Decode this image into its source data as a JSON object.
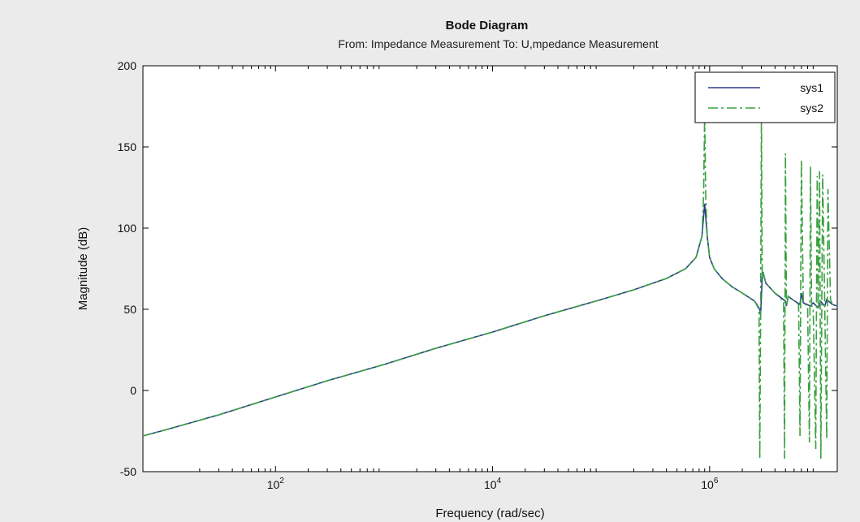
{
  "chart_data": {
    "type": "line",
    "title": "Bode Diagram",
    "subtitle": "From: Impedance Measurement  To: U,mpedance Measurement",
    "xlabel": "Frequency  (rad/sec)",
    "ylabel": "Magnitude (dB)",
    "xscale": "log",
    "xlim": [
      6,
      15000000
    ],
    "ylim": [
      -50,
      200
    ],
    "yticks": [
      -50,
      0,
      50,
      100,
      150,
      200
    ],
    "xticks": [
      100,
      10000,
      1000000
    ],
    "xtick_labels": [
      {
        "base": "10",
        "exp": "2"
      },
      {
        "base": "10",
        "exp": "4"
      },
      {
        "base": "10",
        "exp": "6"
      }
    ],
    "grid": false,
    "legend": "top-right",
    "colors": {
      "sys1": "#2b3a8c",
      "sys2": "#3aa040",
      "background": "#ebebeb",
      "axes": "#ffffff"
    },
    "series": [
      {
        "name": "sys1",
        "style": "solid",
        "x": [
          6,
          10,
          30,
          100,
          300,
          1000,
          3000,
          10000,
          30000,
          100000,
          200000,
          400000,
          600000,
          750000,
          850000,
          900000,
          950000,
          1000000,
          1100000,
          1300000,
          1600000,
          2000000,
          2600000,
          2900000,
          2950000,
          3050000,
          3100000,
          3300000,
          4000000,
          5000000,
          5100000,
          5300000,
          5800000,
          6800000,
          7000000,
          7300000,
          8500000,
          9000000,
          10000000,
          10500000,
          11500000,
          12000000,
          13500000,
          15000000
        ],
        "y": [
          -28,
          -24,
          -15,
          -4,
          6,
          16,
          26,
          36,
          46,
          56,
          62,
          69,
          75,
          82,
          95,
          115,
          95,
          82,
          75,
          69,
          64,
          60,
          55,
          50,
          46,
          70,
          73,
          66,
          60,
          55,
          52,
          58,
          56,
          53,
          60,
          54,
          52,
          54,
          51,
          55,
          52,
          56,
          53,
          52
        ]
      },
      {
        "name": "sys2",
        "style": "dash-dot",
        "x": [
          6,
          10,
          30,
          100,
          300,
          1000,
          3000,
          10000,
          30000,
          100000,
          200000,
          400000,
          600000,
          750000,
          850000,
          880000,
          900000,
          920000,
          950000,
          1000000,
          1100000,
          1300000,
          1600000,
          2000000,
          2600000,
          2850000,
          2900000,
          2950000,
          3000000,
          3050000,
          3100000,
          3300000,
          4000000,
          4800000,
          4900000,
          5000000,
          5100000,
          5300000,
          5800000,
          6600000,
          6800000,
          7000000,
          7300000,
          8000000,
          8300000,
          8500000,
          8700000,
          9000000,
          9500000,
          9800000,
          10000000,
          10300000,
          10600000,
          11000000,
          11500000,
          12000000,
          12300000,
          13000000,
          13500000,
          15000000
        ],
        "y": [
          -28,
          -24,
          -15,
          -4,
          6,
          16,
          26,
          36,
          46,
          56,
          62,
          69,
          75,
          82,
          95,
          120,
          170,
          120,
          95,
          82,
          75,
          69,
          64,
          60,
          55,
          50,
          -42,
          45,
          170,
          70,
          73,
          66,
          60,
          55,
          -42,
          146,
          52,
          58,
          56,
          53,
          -28,
          142,
          54,
          52,
          -32,
          138,
          52,
          51,
          -36,
          132,
          51,
          135,
          -42,
          133,
          52,
          -30,
          124,
          56,
          53,
          52
        ]
      }
    ]
  }
}
